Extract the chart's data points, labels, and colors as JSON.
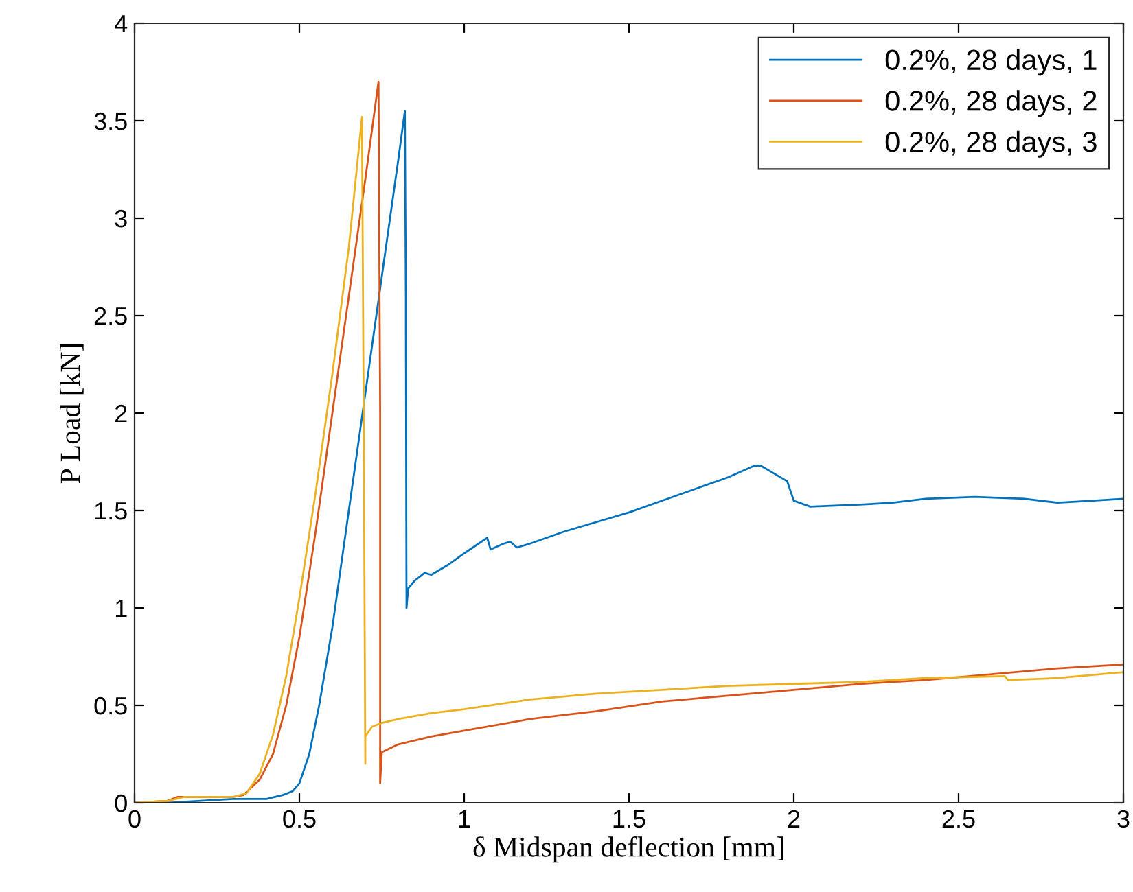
{
  "chart_data": {
    "type": "line",
    "xlabel": "δ Midspan deflection [mm]",
    "ylabel": "P Load [kN]",
    "xlim": [
      0,
      3
    ],
    "ylim": [
      0,
      4
    ],
    "xticks": [
      0,
      0.5,
      1,
      1.5,
      2,
      2.5,
      3
    ],
    "yticks": [
      0,
      0.5,
      1,
      1.5,
      2,
      2.5,
      3,
      3.5,
      4
    ],
    "grid": false,
    "legend": "top right",
    "marker": "none",
    "line_style": "solid",
    "series": [
      {
        "name": "0.2%, 28 days, 1",
        "color": "#0072bd",
        "x": [
          0,
          0.1,
          0.2,
          0.3,
          0.4,
          0.45,
          0.48,
          0.5,
          0.53,
          0.56,
          0.6,
          0.65,
          0.7,
          0.75,
          0.8,
          0.82,
          0.823,
          0.823,
          0.825,
          0.83,
          0.85,
          0.88,
          0.9,
          0.95,
          1.0,
          1.07,
          1.08,
          1.12,
          1.14,
          1.16,
          1.2,
          1.3,
          1.4,
          1.5,
          1.6,
          1.7,
          1.8,
          1.88,
          1.9,
          1.95,
          1.98,
          2.0,
          2.05,
          2.2,
          2.3,
          2.4,
          2.55,
          2.7,
          2.8,
          2.9,
          3.0
        ],
        "values": [
          0,
          0,
          0.01,
          0.02,
          0.02,
          0.04,
          0.06,
          0.1,
          0.25,
          0.5,
          0.9,
          1.5,
          2.1,
          2.7,
          3.3,
          3.55,
          2.6,
          2.45,
          1.0,
          1.1,
          1.14,
          1.18,
          1.17,
          1.22,
          1.28,
          1.36,
          1.3,
          1.33,
          1.34,
          1.31,
          1.33,
          1.39,
          1.44,
          1.49,
          1.55,
          1.61,
          1.67,
          1.73,
          1.73,
          1.68,
          1.65,
          1.55,
          1.52,
          1.53,
          1.54,
          1.56,
          1.57,
          1.56,
          1.54,
          1.55,
          1.56
        ]
      },
      {
        "name": "0.2%, 28 days, 2",
        "color": "#d95319",
        "x": [
          0,
          0.1,
          0.13,
          0.2,
          0.3,
          0.33,
          0.38,
          0.42,
          0.46,
          0.5,
          0.55,
          0.6,
          0.65,
          0.7,
          0.74,
          0.745,
          0.745,
          0.75,
          0.8,
          0.9,
          1.0,
          1.2,
          1.4,
          1.6,
          1.8,
          2.0,
          2.2,
          2.4,
          2.6,
          2.8,
          3.0
        ],
        "values": [
          0,
          0.01,
          0.03,
          0.03,
          0.03,
          0.04,
          0.12,
          0.25,
          0.5,
          0.85,
          1.4,
          2.0,
          2.6,
          3.2,
          3.7,
          2.0,
          0.1,
          0.26,
          0.3,
          0.34,
          0.37,
          0.43,
          0.47,
          0.52,
          0.55,
          0.58,
          0.61,
          0.63,
          0.66,
          0.69,
          0.71
        ]
      },
      {
        "name": "0.2%, 28 days, 3",
        "color": "#edb120",
        "x": [
          0,
          0.1,
          0.15,
          0.3,
          0.34,
          0.38,
          0.42,
          0.46,
          0.5,
          0.55,
          0.6,
          0.65,
          0.69,
          0.695,
          0.7,
          0.7,
          0.72,
          0.75,
          0.8,
          0.9,
          1.0,
          1.2,
          1.4,
          1.6,
          1.8,
          2.0,
          2.2,
          2.4,
          2.64,
          2.65,
          2.8,
          3.0
        ],
        "values": [
          0,
          0.01,
          0.03,
          0.03,
          0.05,
          0.15,
          0.35,
          0.65,
          1.05,
          1.6,
          2.2,
          2.85,
          3.52,
          2.0,
          0.2,
          0.34,
          0.39,
          0.41,
          0.43,
          0.46,
          0.48,
          0.53,
          0.56,
          0.58,
          0.6,
          0.61,
          0.62,
          0.64,
          0.65,
          0.63,
          0.64,
          0.67
        ]
      }
    ]
  }
}
